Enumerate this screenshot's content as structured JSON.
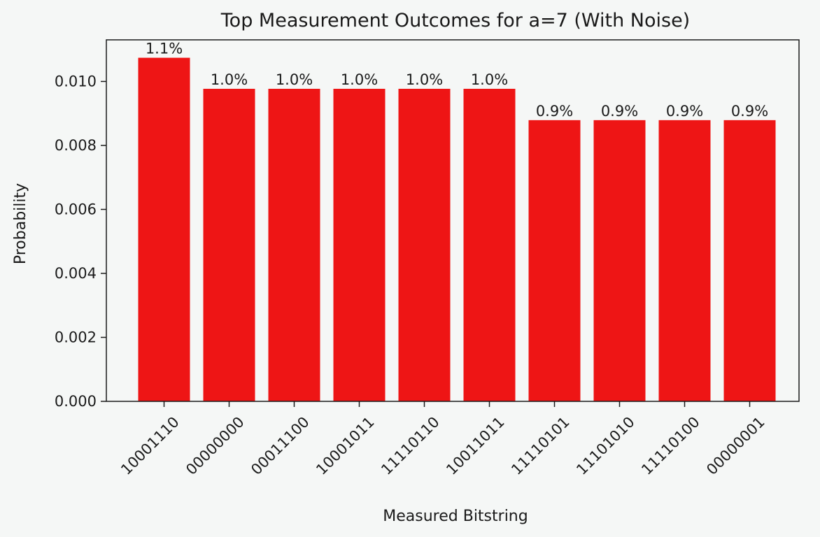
{
  "chart_data": {
    "type": "bar",
    "title": "Top Measurement Outcomes for a=7 (With Noise)",
    "xlabel": "Measured Bitstring",
    "ylabel": "Probability",
    "categories": [
      "10001110",
      "00000000",
      "00011100",
      "10001011",
      "11110110",
      "10011011",
      "11110101",
      "11101010",
      "11110100",
      "00000001"
    ],
    "values": [
      0.01074,
      0.00977,
      0.00977,
      0.00977,
      0.00977,
      0.00977,
      0.00879,
      0.00879,
      0.00879,
      0.00879
    ],
    "data_labels": [
      "1.1%",
      "1.0%",
      "1.0%",
      "1.0%",
      "1.0%",
      "1.0%",
      "0.9%",
      "0.9%",
      "0.9%",
      "0.9%"
    ],
    "ylim": [
      0,
      0.0113
    ],
    "yticks": [
      "0.000",
      "0.002",
      "0.004",
      "0.006",
      "0.008",
      "0.010"
    ],
    "ytick_values": [
      0,
      0.002,
      0.004,
      0.006,
      0.008,
      0.01
    ],
    "bar_color": "#ee1515",
    "grid": false,
    "legend": "none"
  }
}
